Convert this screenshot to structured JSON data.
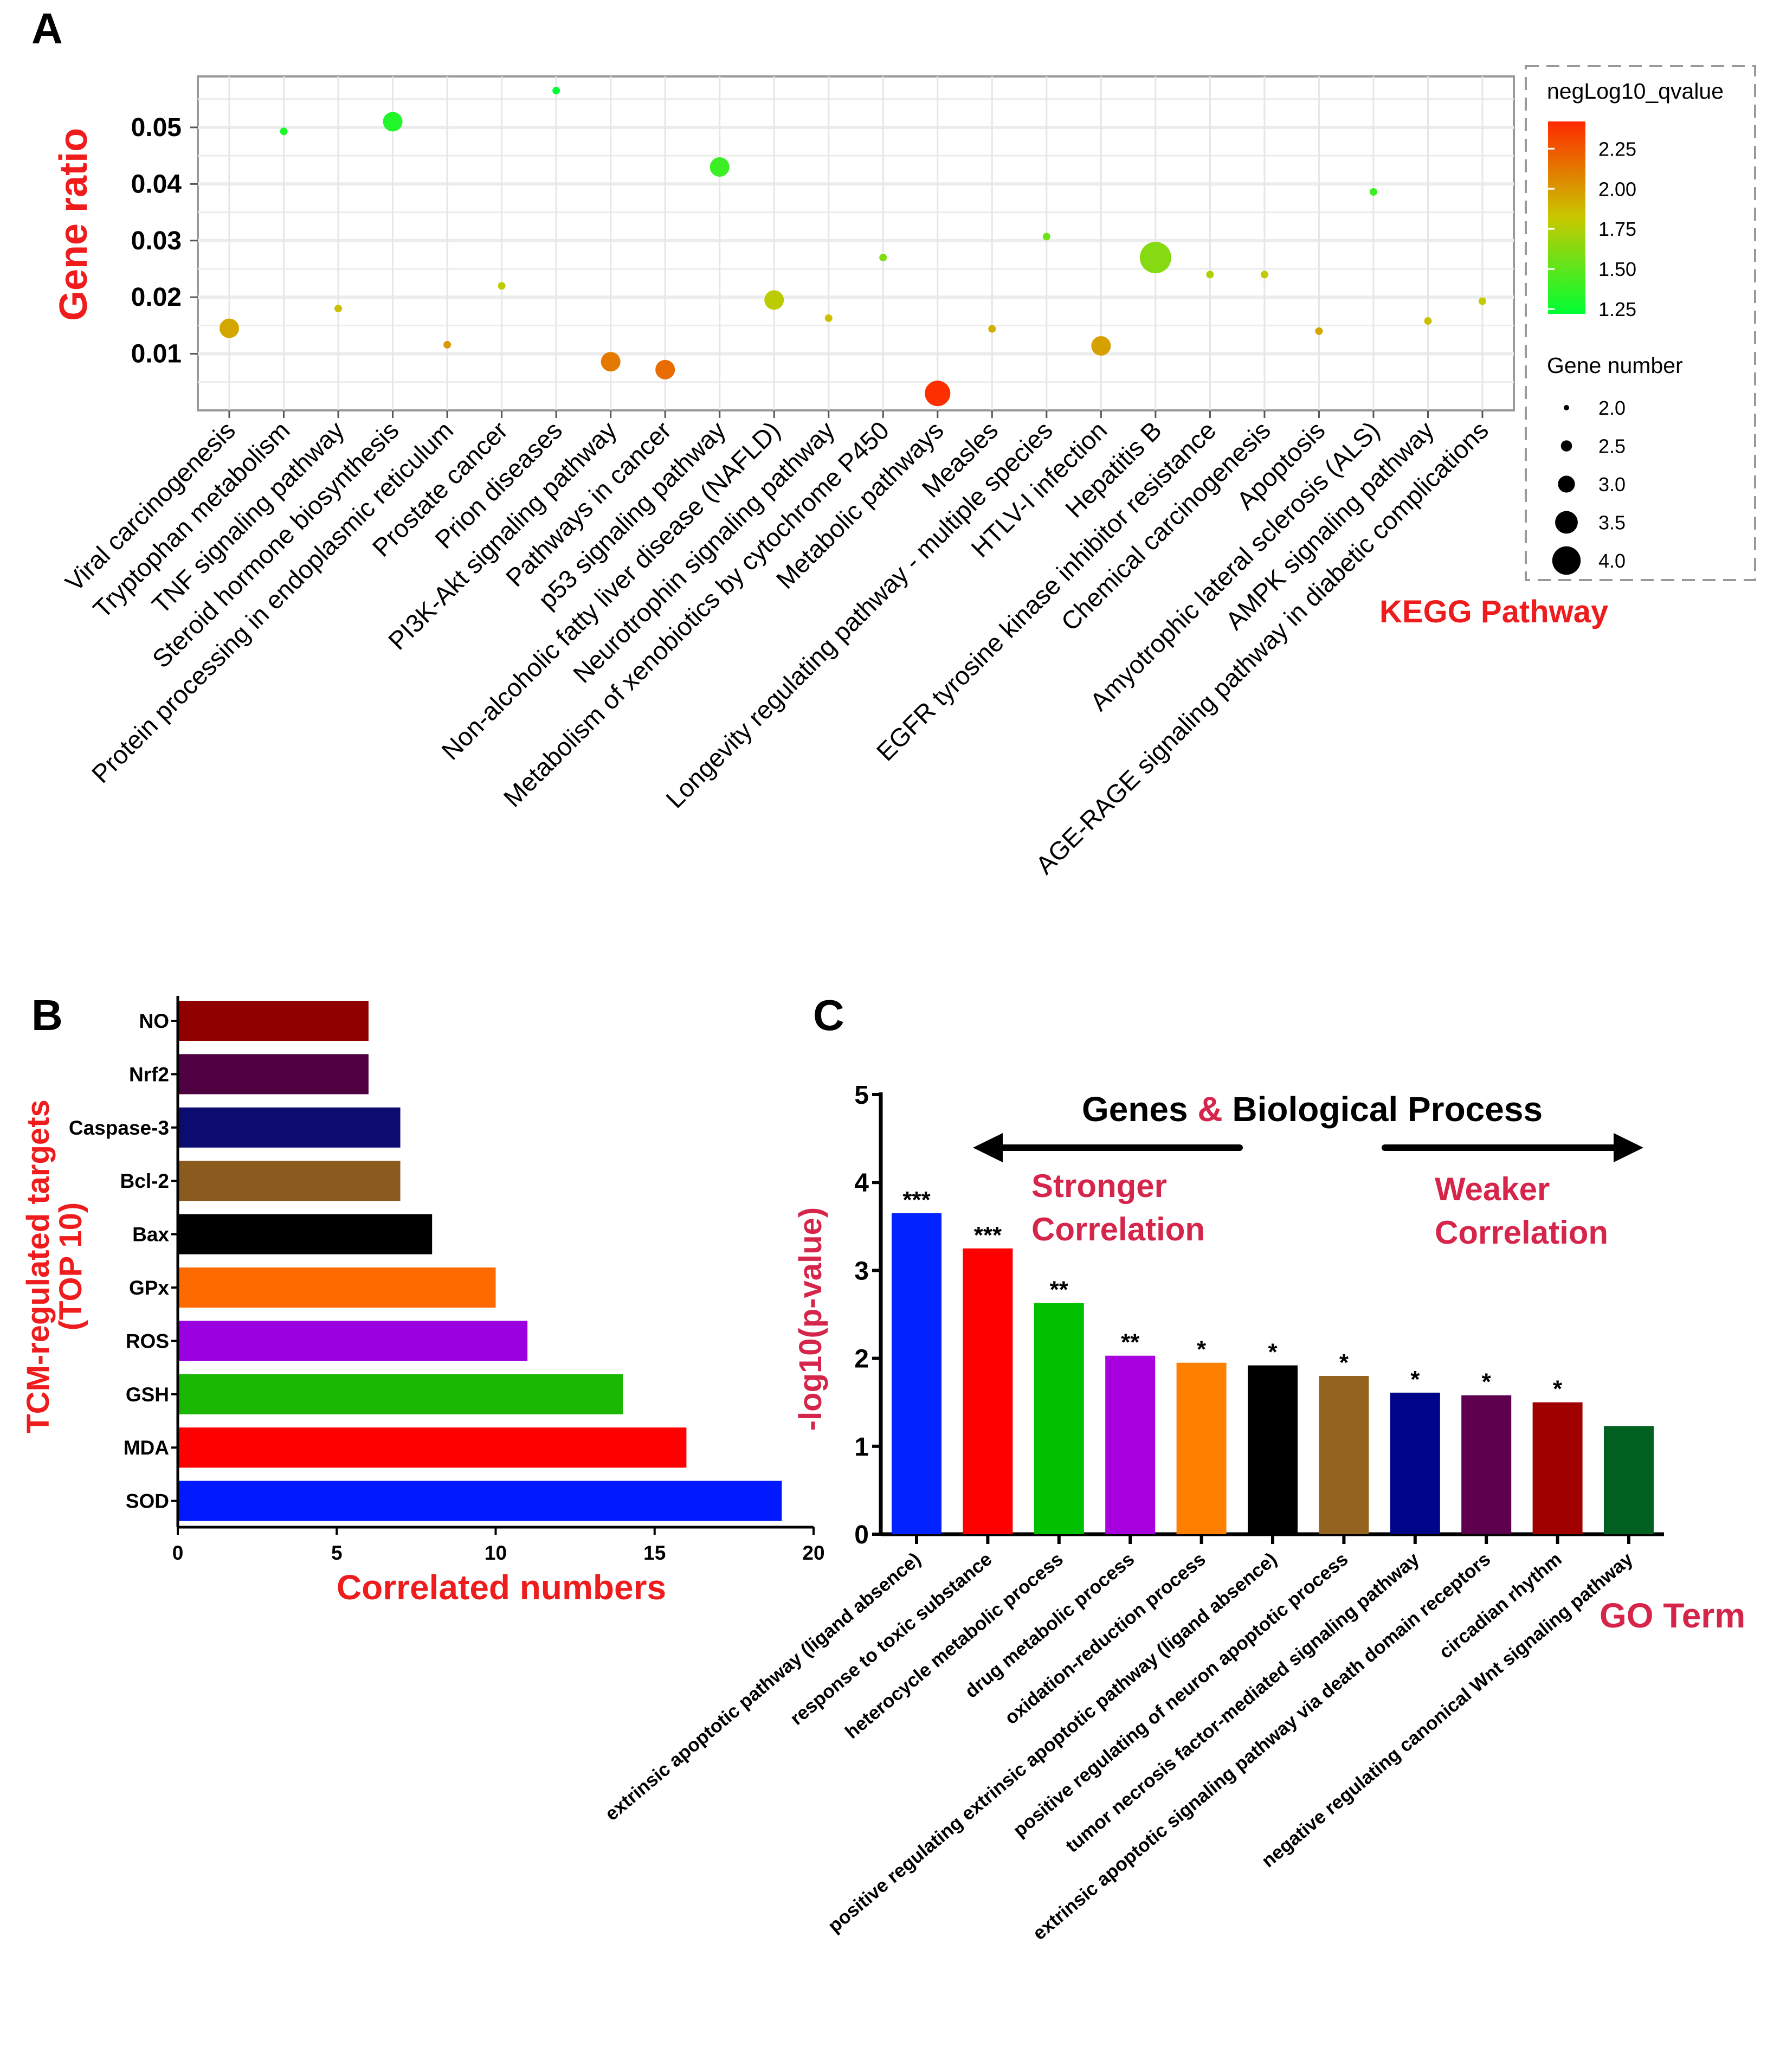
{
  "chart_data": [
    {
      "panel": "A",
      "type": "scatter",
      "title": "",
      "xlabel": "KEGG Pathway",
      "ylabel": "Gene ratio",
      "ylim": [
        0,
        0.059
      ],
      "yticks": [
        "0.01",
        "0.02",
        "0.03",
        "0.04",
        "0.05"
      ],
      "grid": true,
      "color_legend": {
        "title": "negLog10_qvalue",
        "ticks": [
          "2.25",
          "2.00",
          "1.75",
          "1.50",
          "1.25"
        ],
        "range": [
          1.22,
          2.42
        ],
        "colors": [
          "#00ff33",
          "#c8c800",
          "#ff2a00"
        ]
      },
      "size_legend": {
        "title": "Gene number",
        "ticks": [
          "2.0",
          "2.5",
          "3.0",
          "3.5",
          "4.0"
        ]
      },
      "legend_position": "right",
      "points": [
        {
          "term": "Viral carcinogenesis",
          "ratio": 0.0145,
          "q": 1.95,
          "n": 3
        },
        {
          "term": "Tryptophan metabolism",
          "ratio": 0.0493,
          "q": 1.3,
          "n": 2
        },
        {
          "term": "TNF signaling pathway",
          "ratio": 0.018,
          "q": 1.85,
          "n": 2
        },
        {
          "term": "Steroid hormone biosynthesis",
          "ratio": 0.051,
          "q": 1.32,
          "n": 3
        },
        {
          "term": "Protein processing in endoplasmic reticulum",
          "ratio": 0.0116,
          "q": 2.0,
          "n": 2
        },
        {
          "term": "Prostate cancer",
          "ratio": 0.022,
          "q": 1.8,
          "n": 2
        },
        {
          "term": "Prion diseases",
          "ratio": 0.0565,
          "q": 1.22,
          "n": 2
        },
        {
          "term": "PI3K-Akt signaling pathway",
          "ratio": 0.0086,
          "q": 2.12,
          "n": 3
        },
        {
          "term": "Pathways in cancer",
          "ratio": 0.0072,
          "q": 2.17,
          "n": 3
        },
        {
          "term": "p53 signaling pathway",
          "ratio": 0.043,
          "q": 1.4,
          "n": 3
        },
        {
          "term": "Non-alcoholic fatty liver disease (NAFLD)",
          "ratio": 0.0195,
          "q": 1.78,
          "n": 3
        },
        {
          "term": "Neurotrophin signaling pathway",
          "ratio": 0.0163,
          "q": 1.85,
          "n": 2
        },
        {
          "term": "Metabolism of xenobiotics by cytochrome P450",
          "ratio": 0.027,
          "q": 1.6,
          "n": 2
        },
        {
          "term": "Metabolic pathways",
          "ratio": 0.003,
          "q": 2.4,
          "n": 3.5
        },
        {
          "term": "Measles",
          "ratio": 0.0144,
          "q": 1.92,
          "n": 2
        },
        {
          "term": "Longevity regulating pathway - multiple species",
          "ratio": 0.0307,
          "q": 1.55,
          "n": 2
        },
        {
          "term": "HTLV-I infection",
          "ratio": 0.0114,
          "q": 1.97,
          "n": 3
        },
        {
          "term": "Hepatitis B",
          "ratio": 0.027,
          "q": 1.62,
          "n": 4
        },
        {
          "term": "EGFR tyrosine kinase inhibitor resistance",
          "ratio": 0.024,
          "q": 1.75,
          "n": 2
        },
        {
          "term": "Chemical carcinogenesis",
          "ratio": 0.024,
          "q": 1.8,
          "n": 2
        },
        {
          "term": "Apoptosis",
          "ratio": 0.014,
          "q": 1.95,
          "n": 2
        },
        {
          "term": "Amyotrophic lateral sclerosis (ALS)",
          "ratio": 0.0386,
          "q": 1.4,
          "n": 2
        },
        {
          "term": "AMPK signaling pathway",
          "ratio": 0.0158,
          "q": 1.85,
          "n": 2
        },
        {
          "term": "AGE-RAGE signaling pathway in diabetic complications",
          "ratio": 0.0193,
          "q": 1.8,
          "n": 2
        }
      ]
    },
    {
      "panel": "B",
      "type": "bar",
      "orientation": "horizontal",
      "xlabel": "Correlated numbers",
      "ylabel": [
        "TCM-regulated targets",
        "(TOP 10)"
      ],
      "xlim": [
        0,
        20
      ],
      "xticks": [
        "0",
        "5",
        "10",
        "15",
        "20"
      ],
      "categories": [
        "NO",
        "Nrf2",
        "Caspase-3",
        "Bcl-2",
        "Bax",
        "GPx",
        "ROS",
        "GSH",
        "MDA",
        "SOD"
      ],
      "values": [
        6,
        6,
        7,
        7,
        8,
        10,
        11,
        14,
        16,
        19
      ],
      "colors": [
        "#900000",
        "#4f0040",
        "#0b0b70",
        "#8b5a1e",
        "#000000",
        "#ff6a00",
        "#9b00e0",
        "#1ab800",
        "#ff0000",
        "#0019ff"
      ]
    },
    {
      "panel": "C",
      "type": "bar",
      "title": "Genes & Biological Process",
      "title_parts": [
        "Genes",
        "&",
        "Biological Process"
      ],
      "annotations": {
        "left": [
          "Stronger",
          "Correlation"
        ],
        "right": [
          "Weaker",
          "Correlation"
        ]
      },
      "xlabel": "GO Term",
      "ylabel": "-log10(p-value)",
      "ylim": [
        0,
        5
      ],
      "yticks": [
        "0",
        "1",
        "2",
        "3",
        "4",
        "5"
      ],
      "categories": [
        "extrinsic apoptotic pathway (ligand absence)",
        "response to toxic substance",
        "heterocycle metabolic process",
        "drug metabolic process",
        "oxidation-reduction process",
        "positive regulating extrinsic apoptotic pathway (ligand absence)",
        "positive regulating of neuron apoptotic process",
        "tumor necrosis factor-mediated signaling pathway",
        "extrinsic apoptotic signaling pathway via death domain receptors",
        "circadian rhythm",
        "negative regulating canonical Wnt signaling pathway"
      ],
      "values": [
        3.65,
        3.25,
        2.63,
        2.03,
        1.95,
        1.92,
        1.8,
        1.61,
        1.58,
        1.5,
        1.23
      ],
      "significance": [
        "***",
        "***",
        "**",
        "**",
        "*",
        "*",
        "*",
        "*",
        "*",
        "*",
        ""
      ],
      "colors": [
        "#0022ff",
        "#ff0000",
        "#00c000",
        "#a900e0",
        "#ff8000",
        "#000000",
        "#956320",
        "#00058a",
        "#5e004e",
        "#a00000",
        "#006020"
      ]
    }
  ],
  "panels": {
    "a": "A",
    "b": "B",
    "c": "C"
  },
  "colors": {
    "label_red": "#ee1c1c",
    "annot_red": "#d6254a"
  }
}
